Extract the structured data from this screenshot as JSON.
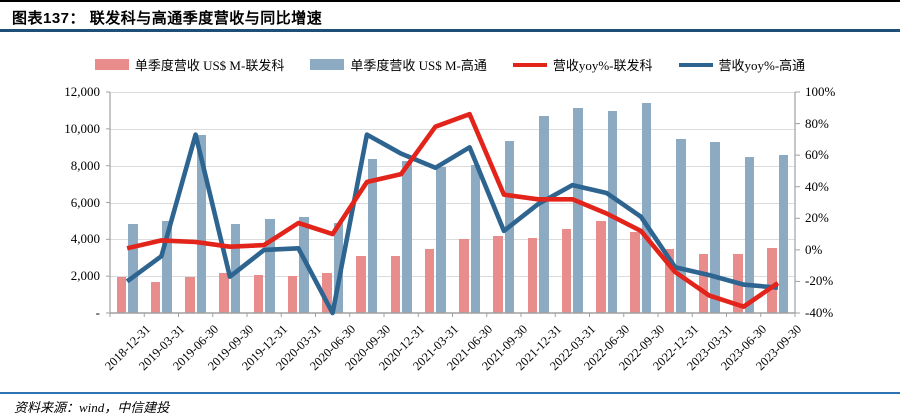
{
  "page": {
    "title": "图表137：  联发科与高通季度营收与同比增速",
    "source": "资料来源：wind，中信建投"
  },
  "colors": {
    "mediatek_bar": "#E98C8C",
    "qualcomm_bar": "#8CABC3",
    "mediatek_line": "#E2241B",
    "qualcomm_line": "#2E6590",
    "top_rule": "#000000",
    "title_rule": "#1F4E79",
    "bottom_rule": "#2E74B5",
    "gridline": "#DCDCDC",
    "axis": "#A0A0A0"
  },
  "chart_data": {
    "type": "combo-bar-line",
    "categories": [
      "2018-12-31",
      "2019-03-31",
      "2019-06-30",
      "2019-09-30",
      "2019-12-31",
      "2020-03-31",
      "2020-06-30",
      "2020-09-30",
      "2020-12-31",
      "2021-03-31",
      "2021-06-30",
      "2021-09-30",
      "2021-12-31",
      "2022-03-31",
      "2022-06-30",
      "2022-09-30",
      "2022-12-31",
      "2023-03-31",
      "2023-06-30",
      "2023-09-30"
    ],
    "series": [
      {
        "name": "单季度营收 US$ M-联发科",
        "type": "bar",
        "axis": "left",
        "color_key": "mediatek_bar",
        "values": [
          1950,
          1700,
          1950,
          2150,
          2080,
          2030,
          2200,
          3080,
          3100,
          3480,
          4000,
          4180,
          4100,
          4550,
          5000,
          4400,
          3500,
          3200,
          3220,
          3550
        ]
      },
      {
        "name": "单季度营收 US$ M-高通",
        "type": "bar",
        "axis": "left",
        "color_key": "qualcomm_bar",
        "values": [
          4850,
          4980,
          9650,
          4815,
          5080,
          5220,
          4900,
          8350,
          8235,
          7935,
          8060,
          9340,
          10700,
          11150,
          10985,
          11390,
          9450,
          9300,
          8450,
          8600
        ]
      },
      {
        "name": "营收yoy%-联发科",
        "type": "line",
        "axis": "right",
        "color_key": "mediatek_line",
        "values": [
          1,
          6,
          5,
          2,
          3,
          17,
          10,
          43,
          48,
          78,
          86,
          35,
          32,
          32,
          23,
          12,
          -14,
          -29,
          -36,
          -21
        ]
      },
      {
        "name": "营收yoy%-高通",
        "type": "line",
        "axis": "right",
        "color_key": "qualcomm_line",
        "values": [
          -20,
          -4,
          73,
          -17,
          0,
          1,
          -40,
          73,
          61,
          52,
          65,
          12,
          29,
          41,
          36,
          21,
          -11,
          -16,
          -22,
          -24
        ]
      }
    ],
    "legend": [
      {
        "label": "单季度营收 US$ M-联发科",
        "swatch": "bar",
        "color_key": "mediatek_bar"
      },
      {
        "label": "单季度营收 US$ M-高通",
        "swatch": "bar",
        "color_key": "qualcomm_bar"
      },
      {
        "label": "营收yoy%-联发科",
        "swatch": "line",
        "color_key": "mediatek_line"
      },
      {
        "label": "营收yoy%-高通",
        "swatch": "line",
        "color_key": "qualcomm_line"
      }
    ],
    "y_left": {
      "min": 0,
      "max": 12000,
      "step": 2000,
      "tick_labels": [
        "12,000",
        "10,000",
        "8,000",
        "6,000",
        "4,000",
        "2,000",
        "-"
      ],
      "tick_values": [
        12000,
        10000,
        8000,
        6000,
        4000,
        2000,
        0
      ]
    },
    "y_right": {
      "min": -40,
      "max": 100,
      "step": 20,
      "tick_labels": [
        "100%",
        "80%",
        "60%",
        "40%",
        "20%",
        "0%",
        "-20%",
        "-40%"
      ],
      "tick_values": [
        100,
        80,
        60,
        40,
        20,
        0,
        -20,
        -40
      ]
    },
    "grid": "horizontal",
    "legend_position": "top"
  }
}
